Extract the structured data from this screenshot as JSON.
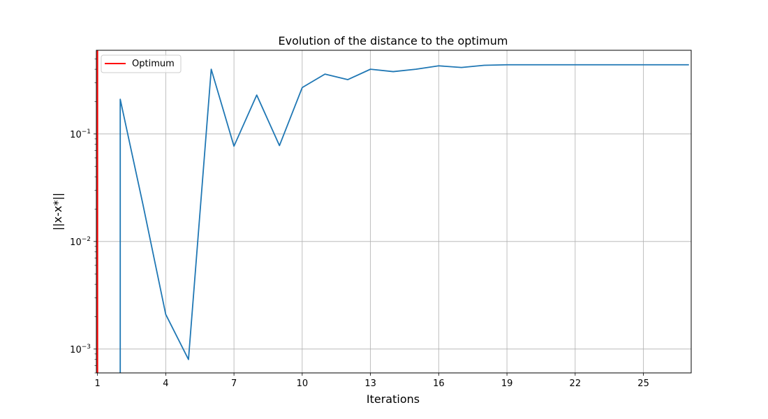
{
  "chart_data": {
    "type": "line",
    "title": "Evolution of the distance to the optimum",
    "xlabel": "Iterations",
    "ylabel": "||x-x*||",
    "yscale": "log",
    "xlim": [
      0.95,
      27.1
    ],
    "ylim": [
      0.0006,
      0.6
    ],
    "grid": true,
    "legend_position": "top-left",
    "x_ticks": [
      1,
      4,
      7,
      10,
      13,
      16,
      19,
      22,
      25
    ],
    "y_ticks": [
      {
        "value": 0.1,
        "base": "10",
        "exp": "−1"
      },
      {
        "value": 0.01,
        "base": "10",
        "exp": "−2"
      },
      {
        "value": 0.001,
        "base": "10",
        "exp": "−3"
      }
    ],
    "series": [
      {
        "color": "#1f77b4",
        "x": [
          2,
          2,
          3,
          4,
          5,
          6,
          7,
          8,
          9,
          10,
          11,
          12,
          13,
          14,
          15,
          16,
          17,
          18,
          19,
          20,
          21,
          22,
          23,
          24,
          25,
          26,
          27
        ],
        "y": [
          0.0006,
          0.21,
          0.022,
          0.0021,
          0.0008,
          0.4,
          0.077,
          0.23,
          0.078,
          0.27,
          0.36,
          0.32,
          0.4,
          0.38,
          0.4,
          0.43,
          0.415,
          0.435,
          0.44,
          0.44,
          0.44,
          0.44,
          0.44,
          0.44,
          0.44,
          0.44,
          0.44
        ]
      }
    ],
    "reference_lines": [
      {
        "name": "Optimum",
        "orientation": "vertical",
        "x": 1,
        "color": "#ff0000"
      }
    ]
  }
}
